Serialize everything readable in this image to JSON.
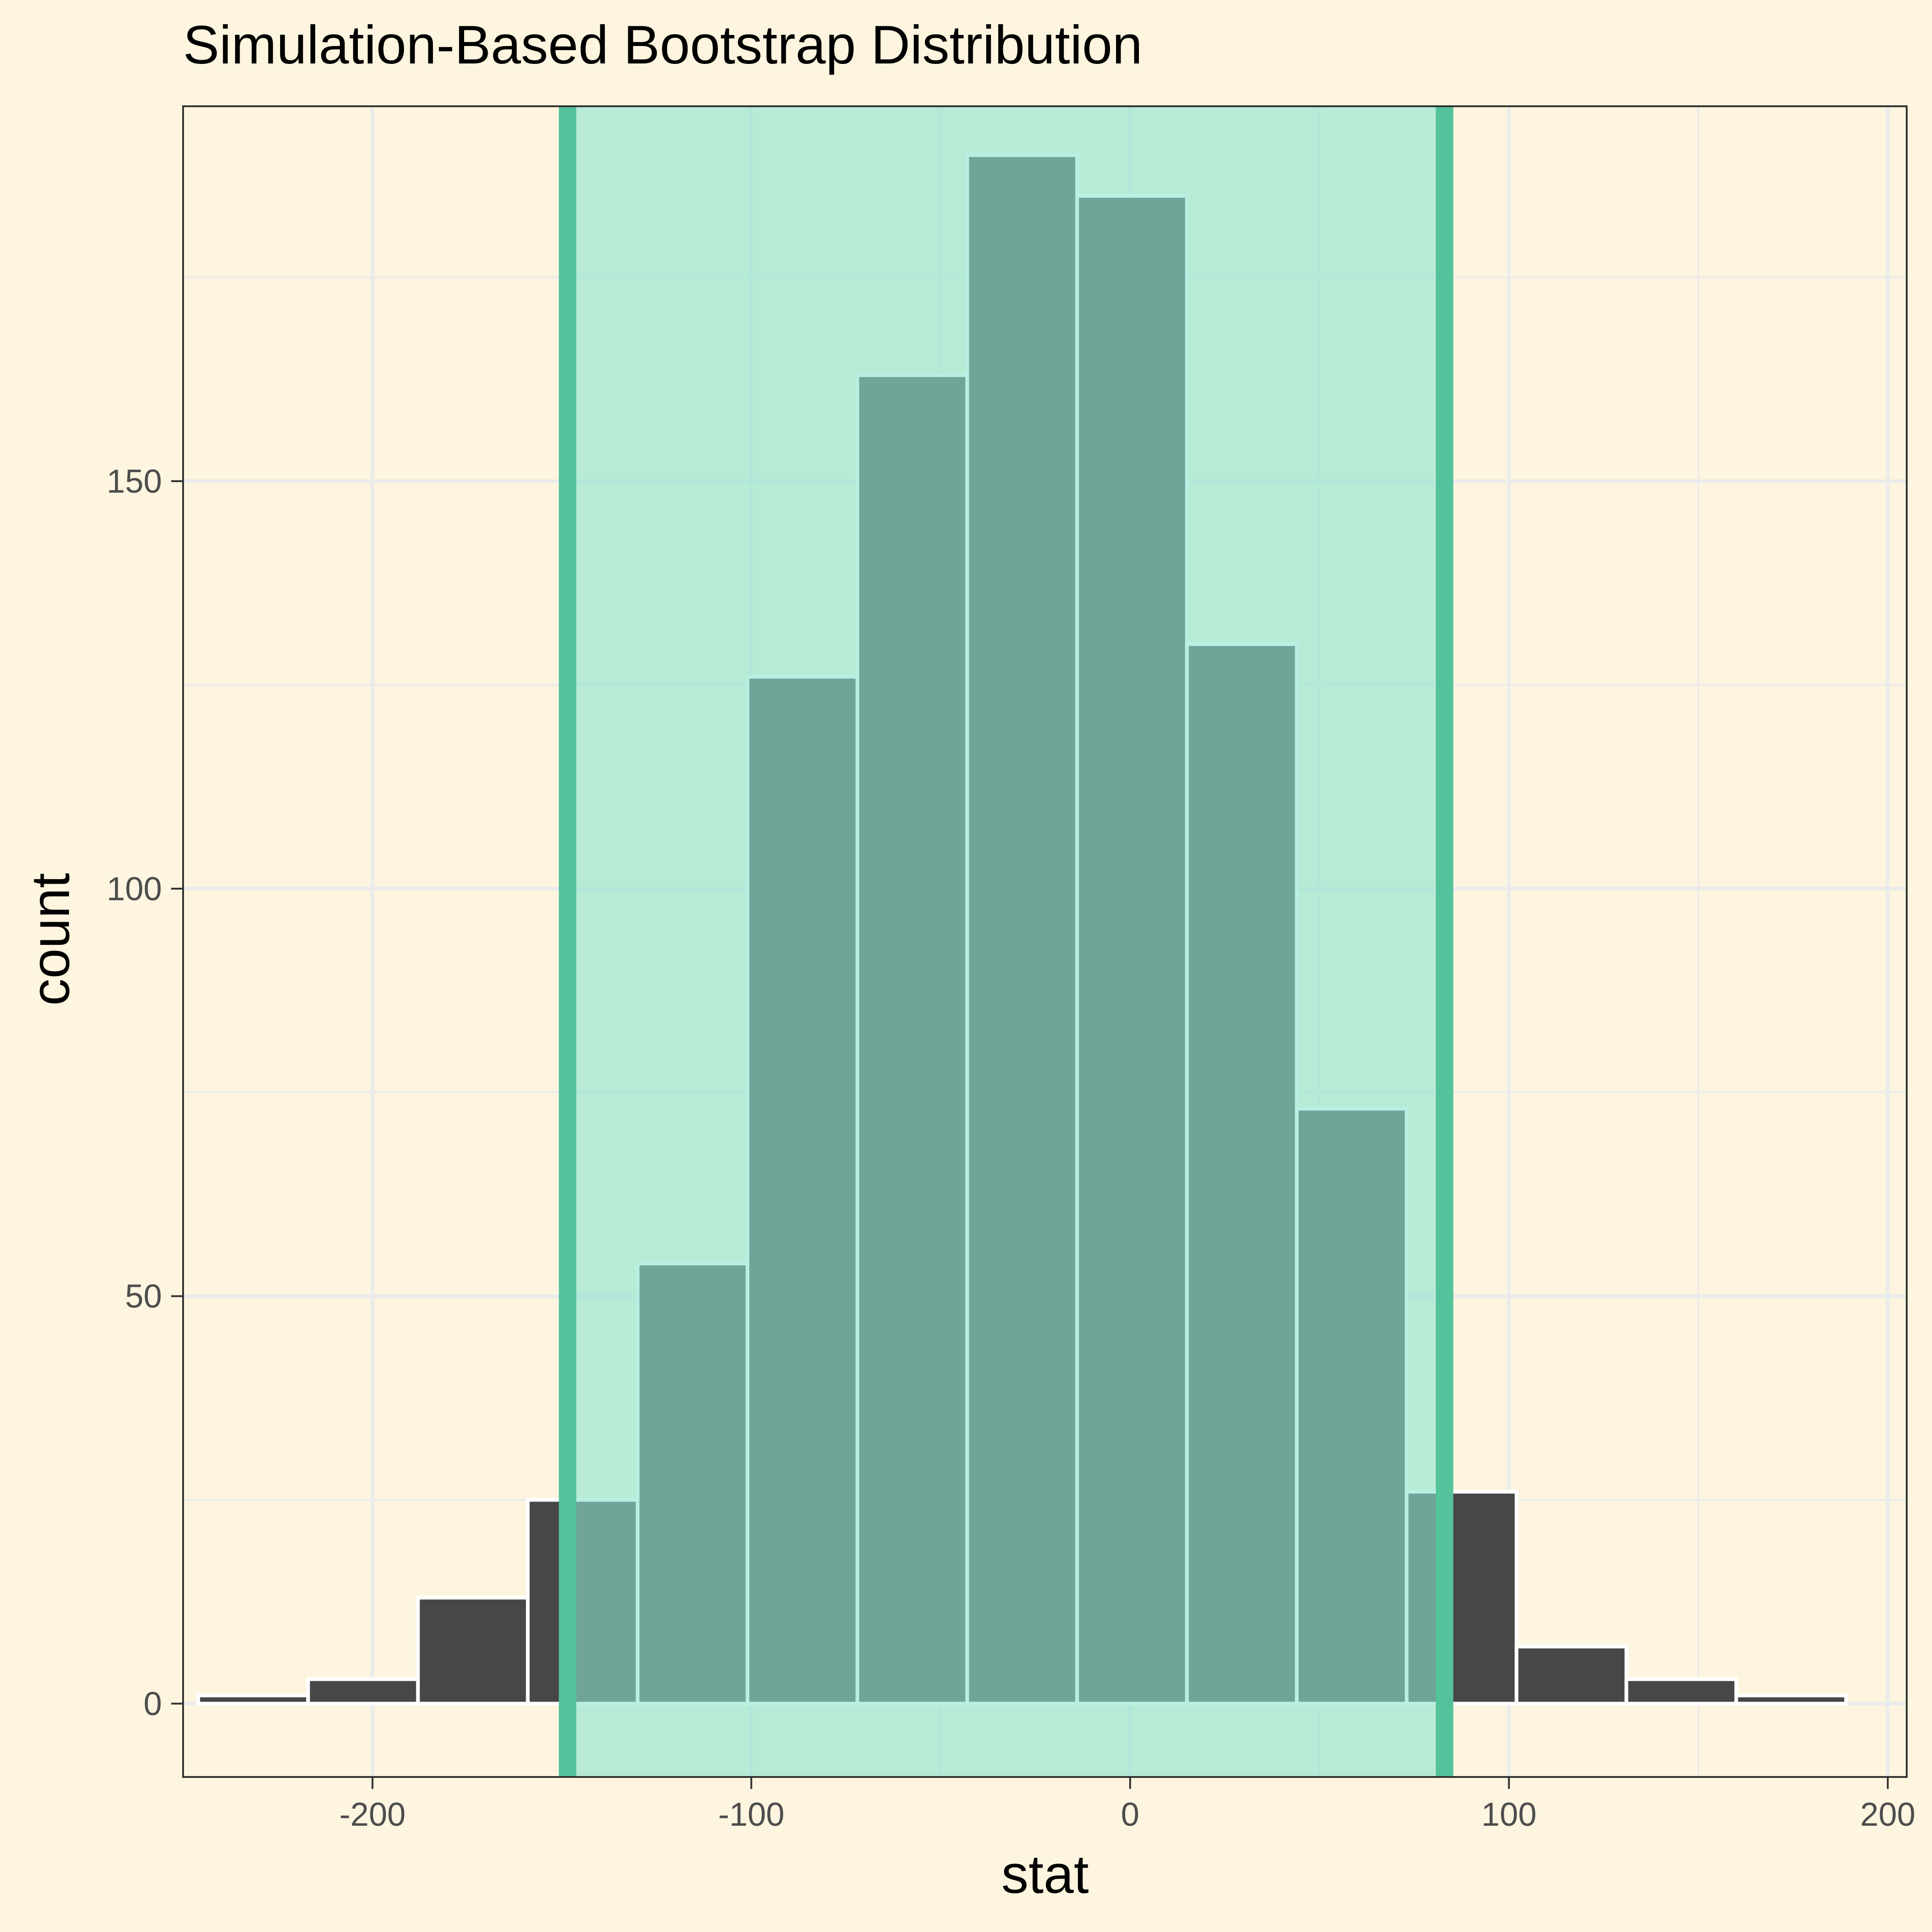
{
  "chart_data": {
    "type": "bar",
    "title": "Simulation-Based Bootstrap Distribution",
    "xlabel": "stat",
    "ylabel": "count",
    "xlim": [
      -250,
      205
    ],
    "ylim": [
      -9,
      196
    ],
    "x_ticks": [
      -200,
      -100,
      0,
      100,
      200
    ],
    "y_ticks": [
      0,
      50,
      100,
      150
    ],
    "x_tick_labels": [
      "-200",
      "-100",
      "0",
      "100",
      "200"
    ],
    "y_tick_labels": [
      "0",
      "50",
      "100",
      "150"
    ],
    "grid": true,
    "bins": [
      {
        "x0": -246,
        "x1": -217,
        "count": 1
      },
      {
        "x0": -217,
        "x1": -188,
        "count": 3
      },
      {
        "x0": -188,
        "x1": -159,
        "count": 13
      },
      {
        "x0": -159,
        "x1": -130,
        "count": 25
      },
      {
        "x0": -130,
        "x1": -101,
        "count": 54
      },
      {
        "x0": -101,
        "x1": -72,
        "count": 126
      },
      {
        "x0": -72,
        "x1": -43,
        "count": 163
      },
      {
        "x0": -43,
        "x1": -14,
        "count": 190
      },
      {
        "x0": -14,
        "x1": 15,
        "count": 185
      },
      {
        "x0": 15,
        "x1": 44,
        "count": 130
      },
      {
        "x0": 44,
        "x1": 73,
        "count": 73
      },
      {
        "x0": 73,
        "x1": 102,
        "count": 26
      },
      {
        "x0": 102,
        "x1": 131,
        "count": 7
      },
      {
        "x0": 131,
        "x1": 160,
        "count": 3
      },
      {
        "x0": 160,
        "x1": 189,
        "count": 1
      }
    ],
    "confidence_interval": {
      "lower": -148.5,
      "upper": 83
    }
  },
  "colors": {
    "background": "#FDF5DF",
    "panel_background": "#FDF5DF",
    "grid": "#EBEBEB",
    "bar_fill": "#474747",
    "bar_outline": "#FFFFFF",
    "shade_fill": "#8AE5D1",
    "ci_line": "#54C29A",
    "bar_in_ci": "#409F90",
    "bar_outline_in_ci": "#9CF0DE",
    "axis_text": "#4D4D4D",
    "panel_border": "#333333"
  }
}
